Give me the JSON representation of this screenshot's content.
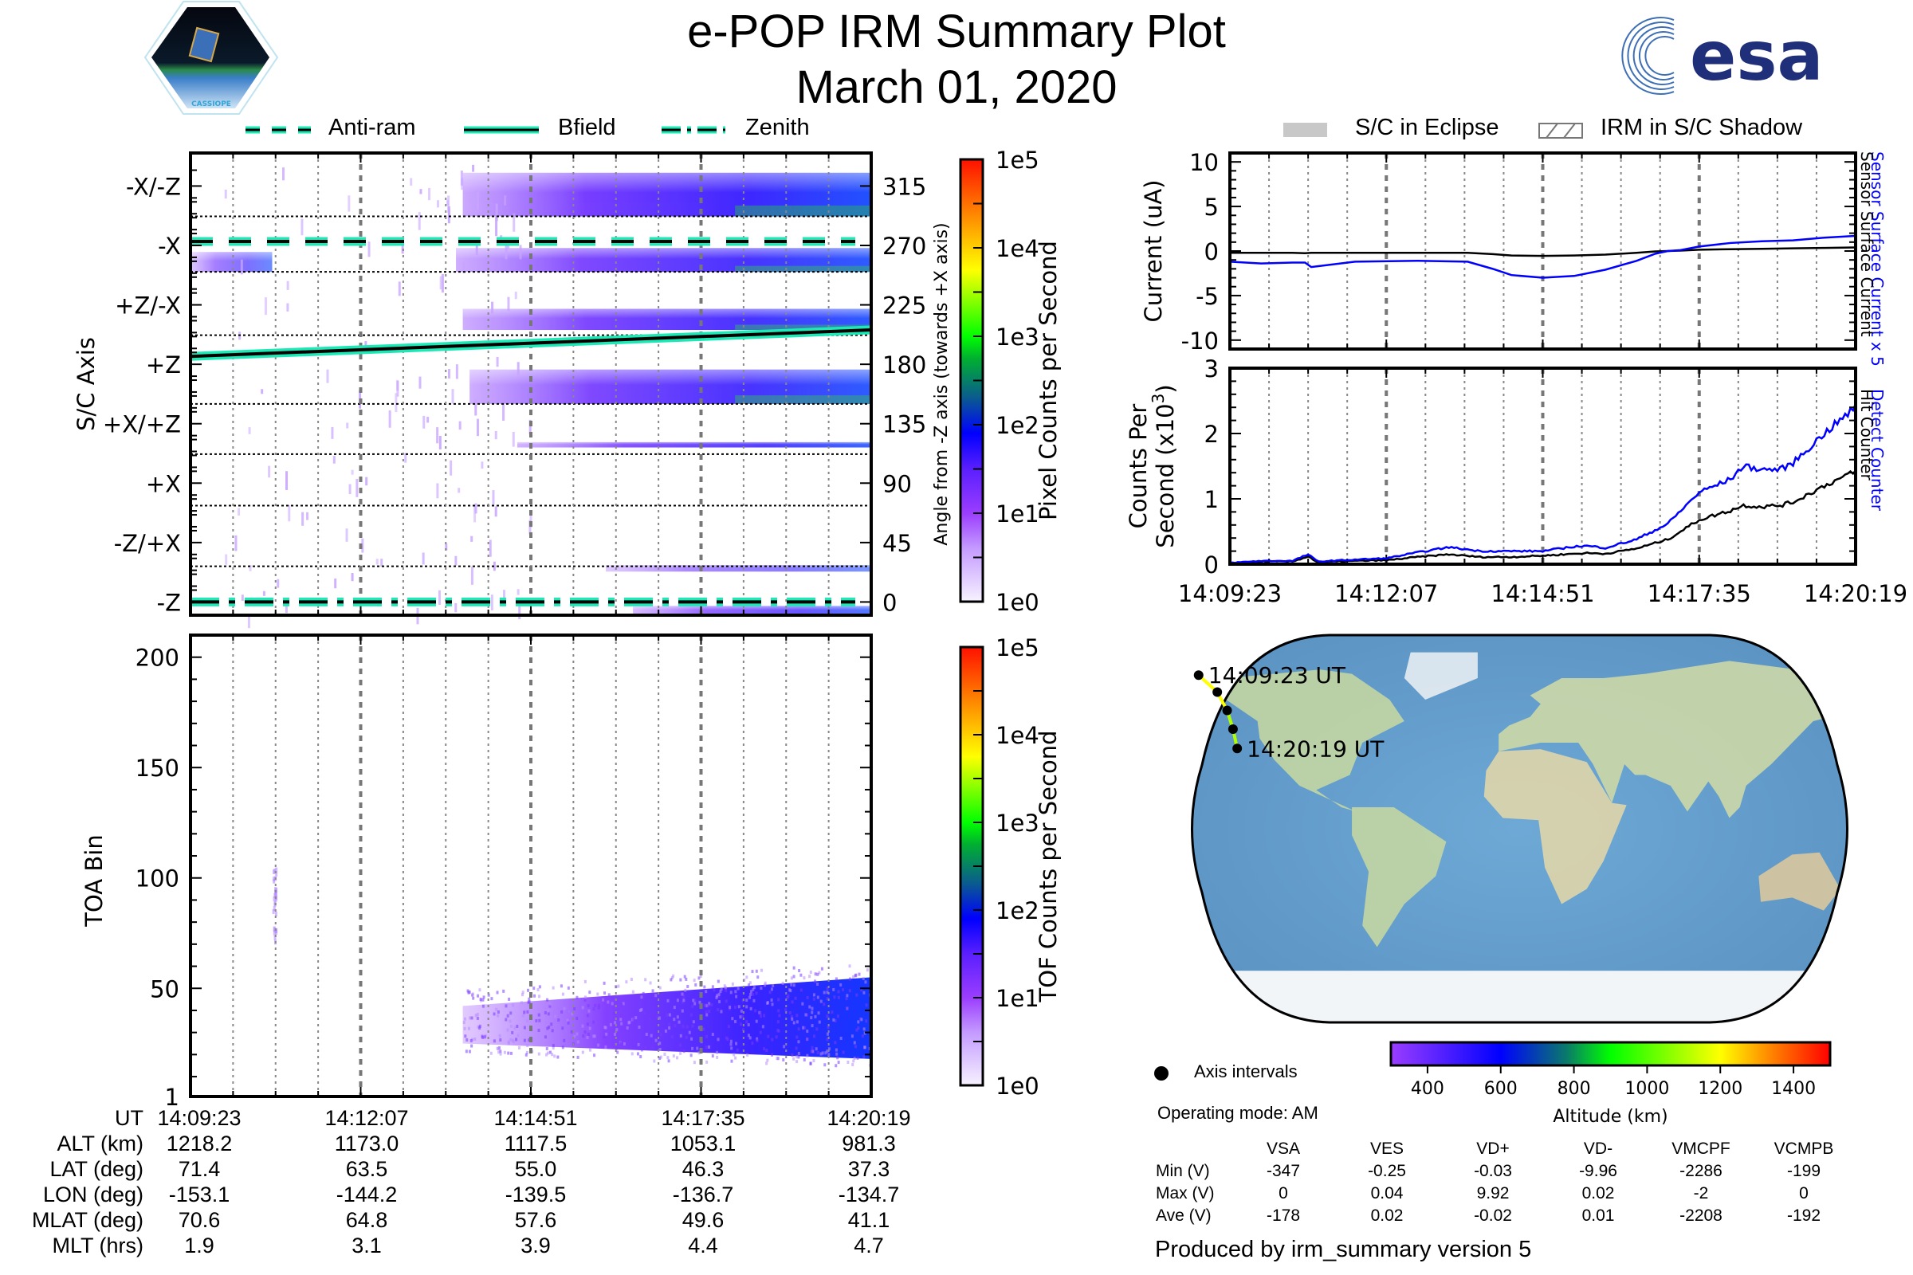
{
  "header": {
    "title": "e-POP IRM Summary Plot",
    "date": "March 01, 2020",
    "left_logo": "CASSIOPE",
    "right_logo": "esa"
  },
  "legend_left": [
    {
      "label": "Anti-ram",
      "style": "dashed"
    },
    {
      "label": "Bfield",
      "style": "solid"
    },
    {
      "label": "Zenith",
      "style": "dashdot"
    }
  ],
  "legend_right": [
    {
      "label": "S/C in Eclipse",
      "style": "gray-fill"
    },
    {
      "label": "IRM in S/C Shadow",
      "style": "hatch"
    }
  ],
  "colors": {
    "line_highlight": "#1de9b6",
    "blue_series": "#0000ff",
    "black_series": "#000000",
    "eclipse_gray": "#c8c8c8"
  },
  "time_ticks": [
    "14:09:23",
    "14:12:07",
    "14:14:51",
    "14:17:35",
    "14:20:19"
  ],
  "chart_data": [
    {
      "type": "heatmap",
      "id": "angle-spectrogram",
      "ylabel_left": "S/C Axis",
      "ylabel_right": "Angle from -Z axis (towards +X axis)",
      "ytick_labels_left": [
        "-X/-Z",
        "-X",
        "+Z/-X",
        "+Z",
        "+X/+Z",
        "+X",
        "-Z/+X",
        "-Z"
      ],
      "ytick_values_right": [
        315,
        270,
        225,
        180,
        135,
        90,
        45,
        0
      ],
      "ylim": [
        -10,
        340
      ],
      "x_ticks": [
        "14:09:23",
        "14:12:07",
        "14:14:51",
        "14:17:35",
        "14:20:19"
      ],
      "overlays": [
        {
          "name": "Anti-ram",
          "style": "dashed",
          "angle_start": 273,
          "angle_end": 273
        },
        {
          "name": "Bfield",
          "style": "solid",
          "angle_start": 186,
          "angle_end": 206
        },
        {
          "name": "Zenith",
          "style": "dashdot",
          "angle_start": 0,
          "angle_end": 0
        }
      ],
      "bands": [
        {
          "angle_low": 292,
          "angle_high": 325,
          "start_fraction": 0.4,
          "intensity": 0.55
        },
        {
          "angle_low": 250,
          "angle_high": 268,
          "start_fraction": 0.39,
          "intensity": 0.5
        },
        {
          "angle_low": 250,
          "angle_high": 265,
          "start_fraction": 0.0,
          "end_fraction": 0.12,
          "intensity": 0.25
        },
        {
          "angle_low": 206,
          "angle_high": 222,
          "start_fraction": 0.4,
          "intensity": 0.5
        },
        {
          "angle_low": 150,
          "angle_high": 176,
          "start_fraction": 0.41,
          "intensity": 0.5
        },
        {
          "angle_low": 117,
          "angle_high": 121,
          "start_fraction": 0.48,
          "intensity": 0.45
        },
        {
          "angle_low": 23,
          "angle_high": 28,
          "start_fraction": 0.61,
          "intensity": 0.2
        },
        {
          "angle_low": -10,
          "angle_high": -3,
          "start_fraction": 0.65,
          "intensity": 0.35
        }
      ],
      "colorbar": {
        "label": "Pixel Counts per Second",
        "ticks": [
          "1e0",
          "1e1",
          "1e2",
          "1e3",
          "1e4",
          "1e5"
        ],
        "scale": "log",
        "range": [
          1,
          100000
        ]
      }
    },
    {
      "type": "heatmap",
      "id": "toa-spectrogram",
      "ylabel": "TOA Bin",
      "yticks": [
        1,
        50,
        100,
        150,
        200
      ],
      "ylim": [
        1,
        210
      ],
      "x_ticks": [
        "14:09:23",
        "14:12:07",
        "14:14:51",
        "14:17:35",
        "14:20:19"
      ],
      "cloud": {
        "start_fraction": 0.4,
        "bin_low_start": 25,
        "bin_high_start": 42,
        "bin_low_end": 18,
        "bin_high_end": 55
      },
      "colorbar": {
        "label": "TOF Counts per Second",
        "ticks": [
          "1e0",
          "1e1",
          "1e2",
          "1e3",
          "1e4",
          "1e5"
        ],
        "scale": "log",
        "range": [
          1,
          100000
        ]
      }
    },
    {
      "type": "line",
      "id": "current-plot",
      "ylabel": "Current (uA)",
      "ylim": [
        -11,
        11
      ],
      "yticks": [
        -10,
        -5,
        0,
        5,
        10
      ],
      "right_labels": [
        {
          "text": "Sensor Surface Current x 5",
          "color": "#0000ff"
        },
        {
          "text": "Sensor Surface Current",
          "color": "#000000"
        }
      ],
      "x": [
        0,
        0.05,
        0.1,
        0.12,
        0.13,
        0.2,
        0.3,
        0.38,
        0.42,
        0.45,
        0.5,
        0.55,
        0.6,
        0.65,
        0.68,
        0.7,
        0.72,
        0.75,
        0.8,
        0.85,
        0.9,
        0.95,
        1.0
      ],
      "series": [
        {
          "name": "Sensor Surface Current x 5",
          "color": "#0000ff",
          "values": [
            -1.2,
            -1.4,
            -1.3,
            -1.3,
            -1.8,
            -1.2,
            -1.1,
            -1.2,
            -2.0,
            -2.7,
            -3.0,
            -2.8,
            -2.1,
            -1.1,
            -0.3,
            0.0,
            0.1,
            0.5,
            0.9,
            1.1,
            1.2,
            1.5,
            1.7
          ]
        },
        {
          "name": "Sensor Surface Current",
          "color": "#000000",
          "values": [
            -0.2,
            -0.2,
            -0.2,
            -0.25,
            -0.2,
            -0.2,
            -0.2,
            -0.2,
            -0.35,
            -0.5,
            -0.55,
            -0.5,
            -0.4,
            -0.2,
            -0.05,
            0.0,
            0.05,
            0.15,
            0.2,
            0.25,
            0.3,
            0.35,
            0.4
          ]
        }
      ]
    },
    {
      "type": "line",
      "id": "counts-plot",
      "ylabel": "Counts Per Second (x10^3)",
      "ylim": [
        0,
        3
      ],
      "yticks": [
        0,
        1,
        2,
        3
      ],
      "x_ticks": [
        "14:09:23",
        "14:12:07",
        "14:14:51",
        "14:17:35",
        "14:20:19"
      ],
      "right_labels": [
        {
          "text": "Detect Counter",
          "color": "#0000ff"
        },
        {
          "text": "Hit Counter",
          "color": "#000000"
        }
      ],
      "x": [
        0,
        0.05,
        0.1,
        0.125,
        0.14,
        0.2,
        0.25,
        0.3,
        0.35,
        0.4,
        0.45,
        0.5,
        0.55,
        0.57,
        0.6,
        0.65,
        0.7,
        0.75,
        0.8,
        0.82,
        0.85,
        0.88,
        0.9,
        0.95,
        1.0
      ],
      "series": [
        {
          "name": "Detect Counter",
          "color": "#0000ff",
          "values": [
            0.02,
            0.05,
            0.05,
            0.15,
            0.04,
            0.07,
            0.09,
            0.18,
            0.26,
            0.2,
            0.2,
            0.2,
            0.27,
            0.28,
            0.25,
            0.38,
            0.62,
            1.1,
            1.3,
            1.5,
            1.45,
            1.45,
            1.55,
            2.0,
            2.4
          ]
        },
        {
          "name": "Hit Counter",
          "color": "#000000",
          "values": [
            0.01,
            0.04,
            0.04,
            0.12,
            0.03,
            0.05,
            0.06,
            0.11,
            0.15,
            0.11,
            0.11,
            0.13,
            0.16,
            0.17,
            0.16,
            0.24,
            0.38,
            0.68,
            0.82,
            0.9,
            0.88,
            0.9,
            0.95,
            1.2,
            1.42
          ]
        }
      ]
    },
    {
      "type": "scatter",
      "id": "orbit-map",
      "start_label": "14:09:23 UT",
      "end_label": "14:20:19 UT",
      "points": [
        {
          "lat": 71.4,
          "lon": -153.1,
          "alt": 1218.2
        },
        {
          "lat": 63.5,
          "lon": -144.2,
          "alt": 1173.0
        },
        {
          "lat": 55.0,
          "lon": -139.5,
          "alt": 1117.5
        },
        {
          "lat": 46.3,
          "lon": -136.7,
          "alt": 1053.1
        },
        {
          "lat": 37.3,
          "lon": -134.7,
          "alt": 981.3
        }
      ],
      "colorbar": {
        "label": "Altitude (km)",
        "ticks": [
          400,
          600,
          800,
          1000,
          1200,
          1400
        ],
        "range": [
          300,
          1500
        ]
      }
    }
  ],
  "ephemeris": {
    "row_labels": [
      "UT",
      "ALT (km)",
      "LAT (deg)",
      "LON (deg)",
      "MLAT (deg)",
      "MLT (hrs)"
    ],
    "columns": [
      [
        "14:09:23",
        "1218.2",
        "71.4",
        "-153.1",
        "70.6",
        "1.9"
      ],
      [
        "14:12:07",
        "1173.0",
        "63.5",
        "-144.2",
        "64.8",
        "3.1"
      ],
      [
        "14:14:51",
        "1117.5",
        "55.0",
        "-139.5",
        "57.6",
        "3.9"
      ],
      [
        "14:17:35",
        "1053.1",
        "46.3",
        "-136.7",
        "49.6",
        "4.4"
      ],
      [
        "14:20:19",
        "981.3",
        "37.3",
        "-134.7",
        "41.1",
        "4.7"
      ]
    ]
  },
  "map_legend": {
    "axis_intervals": "Axis intervals",
    "operating_mode": "Operating mode: AM"
  },
  "voltages": {
    "headers": [
      "VSA",
      "VES",
      "VD+",
      "VD-",
      "VMCPF",
      "VCMPB"
    ],
    "rows": [
      {
        "label": "Min (V)",
        "values": [
          "-347",
          "-0.25",
          "-0.03",
          "-9.96",
          "-2286",
          "-199"
        ]
      },
      {
        "label": "Max (V)",
        "values": [
          "0",
          "0.04",
          "9.92",
          "0.02",
          "-2",
          "0"
        ]
      },
      {
        "label": "Ave (V)",
        "values": [
          "-178",
          "0.02",
          "-0.02",
          "0.01",
          "-2208",
          "-192"
        ]
      }
    ]
  },
  "footer": "Produced by irm_summary version 5"
}
